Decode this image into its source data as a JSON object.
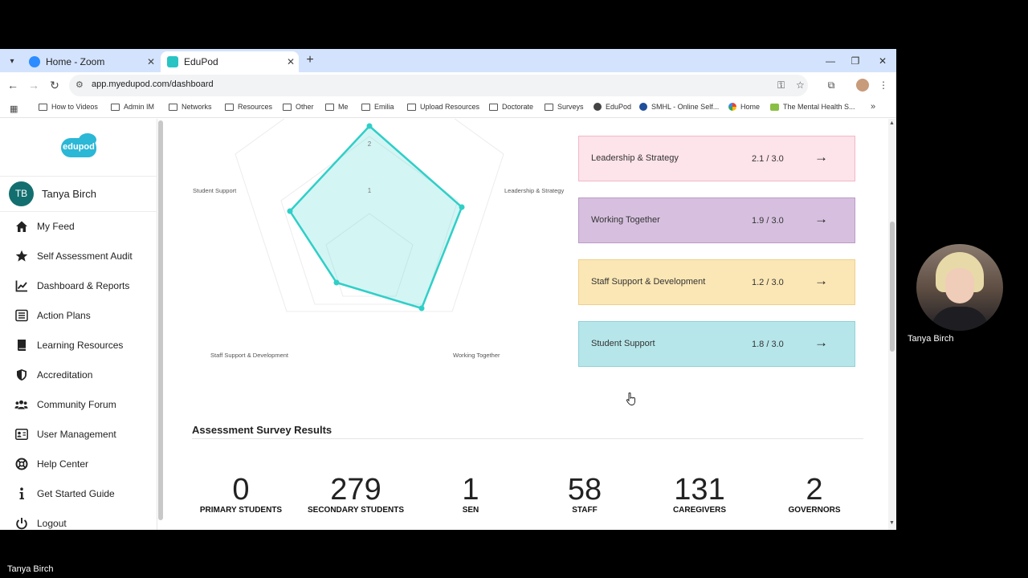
{
  "browser": {
    "tabs": [
      {
        "label": "Home - Zoom",
        "active": false
      },
      {
        "label": "EduPod",
        "active": true
      }
    ],
    "url": "app.myedupod.com/dashboard",
    "bookmarks": [
      "How to Videos",
      "Admin IM",
      "Networks",
      "Resources",
      "Other",
      "Me",
      "Emilia",
      "Upload Resources",
      "Doctorate",
      "Surveys",
      "EduPod",
      "SMHL - Online Self...",
      "Home",
      "The Mental Health S..."
    ]
  },
  "sidebar": {
    "logo_text": "edupod",
    "user": {
      "initials": "TB",
      "name": "Tanya Birch"
    },
    "items": [
      {
        "label": "My Feed",
        "icon": "home-icon"
      },
      {
        "label": "Self Assessment Audit",
        "icon": "star-icon"
      },
      {
        "label": "Dashboard & Reports",
        "icon": "chart-icon"
      },
      {
        "label": "Action Plans",
        "icon": "list-icon"
      },
      {
        "label": "Learning Resources",
        "icon": "book-icon"
      },
      {
        "label": "Accreditation",
        "icon": "shield-icon"
      },
      {
        "label": "Community Forum",
        "icon": "users-icon"
      },
      {
        "label": "User Management",
        "icon": "id-card-icon"
      },
      {
        "label": "Help Center",
        "icon": "lifebuoy-icon"
      },
      {
        "label": "Get Started Guide",
        "icon": "info-icon"
      },
      {
        "label": "Logout",
        "icon": "power-icon"
      }
    ]
  },
  "radar": {
    "ticks": [
      "1",
      "2"
    ],
    "axes": [
      "Leadership & Strategy",
      "Working Together",
      "Staff Support & Development",
      "Student Support"
    ],
    "colors": {
      "fill": "#4fd8d3",
      "stroke": "#2fcfc8",
      "grid": "#ececec"
    }
  },
  "scores": [
    {
      "name": "Leadership & Strategy",
      "value": "2.1 / 3.0",
      "bg": "#fde3ea",
      "border": "#f1b9c7"
    },
    {
      "name": "Working Together",
      "value": "1.9 / 3.0",
      "bg": "#d7c0df",
      "border": "#bb9ac6"
    },
    {
      "name": "Staff Support & Development",
      "value": "1.2 / 3.0",
      "bg": "#fbe7b5",
      "border": "#efd08a"
    },
    {
      "name": "Student Support",
      "value": "1.8 / 3.0",
      "bg": "#b6e6ea",
      "border": "#8fd2d8"
    }
  ],
  "survey": {
    "title": "Assessment Survey Results",
    "stats": [
      {
        "value": "0",
        "label": "PRIMARY STUDENTS"
      },
      {
        "value": "279",
        "label": "SECONDARY STUDENTS"
      },
      {
        "value": "1",
        "label": "SEN"
      },
      {
        "value": "58",
        "label": "STAFF"
      },
      {
        "value": "131",
        "label": "CAREGIVERS"
      },
      {
        "value": "2",
        "label": "GOVERNORS"
      }
    ]
  },
  "zoom": {
    "participant_name": "Tanya Birch",
    "self_name": "Tanya Birch"
  }
}
